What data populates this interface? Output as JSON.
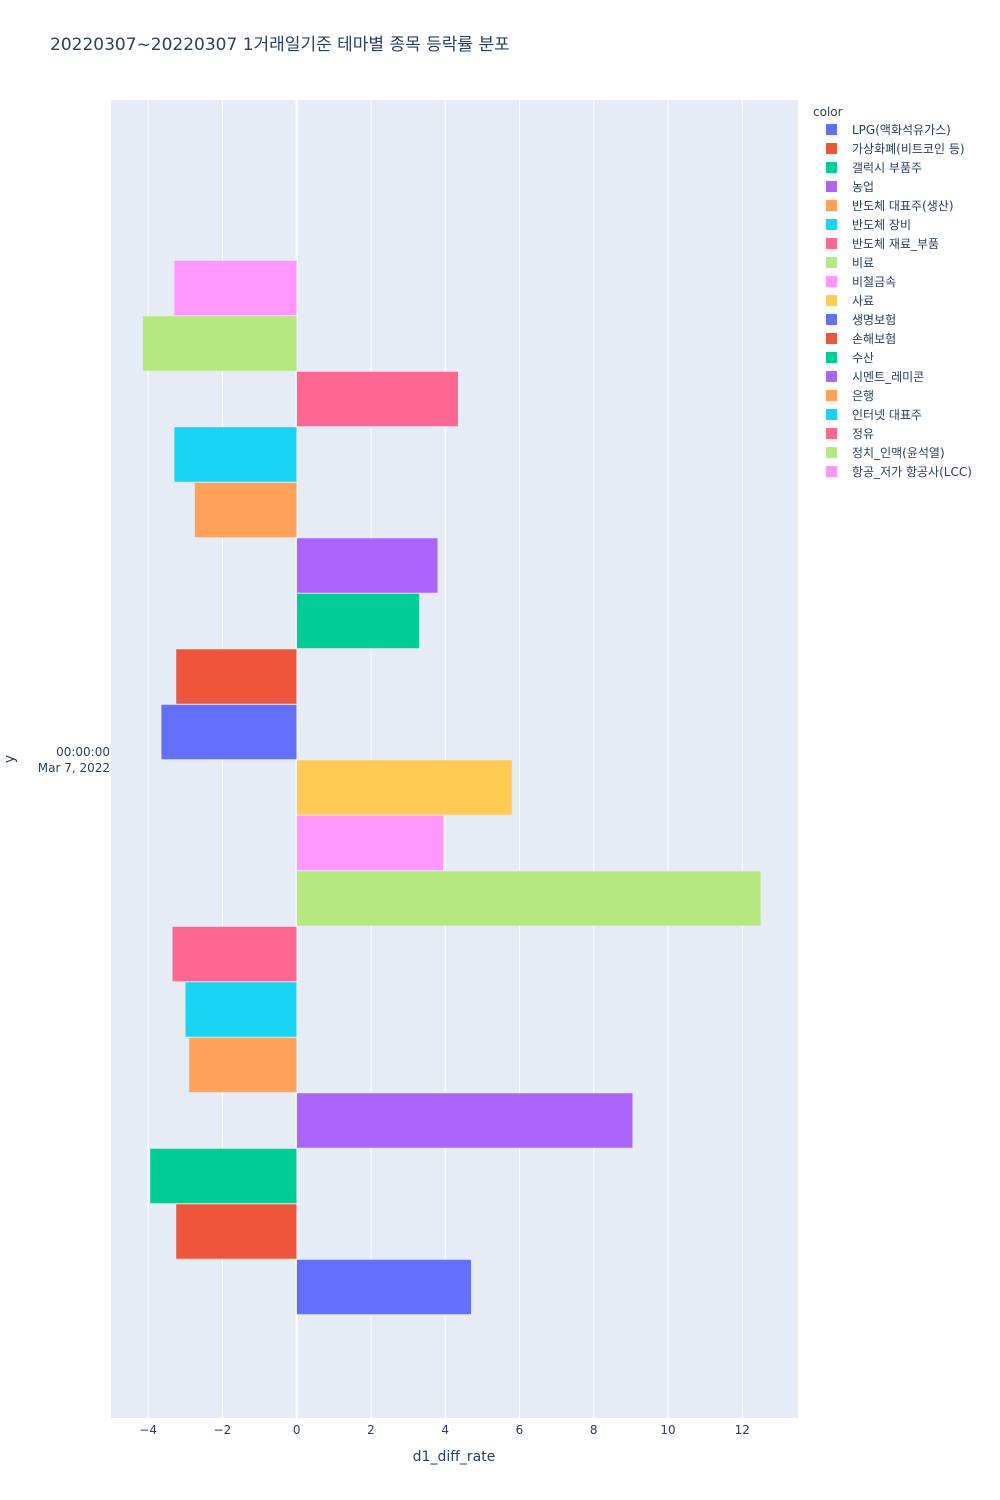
{
  "chart_data": {
    "type": "bar",
    "orientation": "horizontal",
    "title": "20220307~20220307 1거래일기준 테마별 종목 등락률 분포",
    "xlabel": "d1_diff_rate",
    "ylabel": "y",
    "y_tick": [
      "00:00:00",
      "Mar 7, 2022"
    ],
    "xlim": [
      -5,
      13.5
    ],
    "x_ticks": [
      -4,
      -2,
      0,
      2,
      4,
      6,
      8,
      10,
      12
    ],
    "x_tick_labels": [
      "−4",
      "−2",
      "0",
      "2",
      "4",
      "6",
      "8",
      "10",
      "12"
    ],
    "grid": true,
    "legend_title": "color",
    "legend_position": "right",
    "series": [
      {
        "name": "LPG(액화석유가스)",
        "color": "#636efa",
        "value": 4.7
      },
      {
        "name": "가상화폐(비트코인 등)",
        "color": "#EF553B",
        "value": -3.25
      },
      {
        "name": "갤럭시 부품주",
        "color": "#00cc96",
        "value": -3.95
      },
      {
        "name": "농업",
        "color": "#ab63fa",
        "value": 9.05
      },
      {
        "name": "반도체 대표주(생산)",
        "color": "#FFA15A",
        "value": -2.9
      },
      {
        "name": "반도체 장비",
        "color": "#19d3f3",
        "value": -3.0
      },
      {
        "name": "반도체 재료_부품",
        "color": "#FF6692",
        "value": -3.35
      },
      {
        "name": "비료",
        "color": "#B6E880",
        "value": 12.5
      },
      {
        "name": "비철금속",
        "color": "#FF97FF",
        "value": 3.95
      },
      {
        "name": "사료",
        "color": "#FECB52",
        "value": 5.8
      },
      {
        "name": "생명보험",
        "color": "#636efa",
        "value": -3.65
      },
      {
        "name": "손해보험",
        "color": "#EF553B",
        "value": -3.25
      },
      {
        "name": "수산",
        "color": "#00cc96",
        "value": 3.3
      },
      {
        "name": "시멘트_레미콘",
        "color": "#ab63fa",
        "value": 3.8
      },
      {
        "name": "은행",
        "color": "#FFA15A",
        "value": -2.75
      },
      {
        "name": "인터넷 대표주",
        "color": "#19d3f3",
        "value": -3.3
      },
      {
        "name": "정유",
        "color": "#FF6692",
        "value": 4.35
      },
      {
        "name": "정치_인맥(윤석열)",
        "color": "#B6E880",
        "value": -4.15
      },
      {
        "name": "항공_저가 항공사(LCC)",
        "color": "#FF97FF",
        "value": -3.3
      }
    ]
  }
}
